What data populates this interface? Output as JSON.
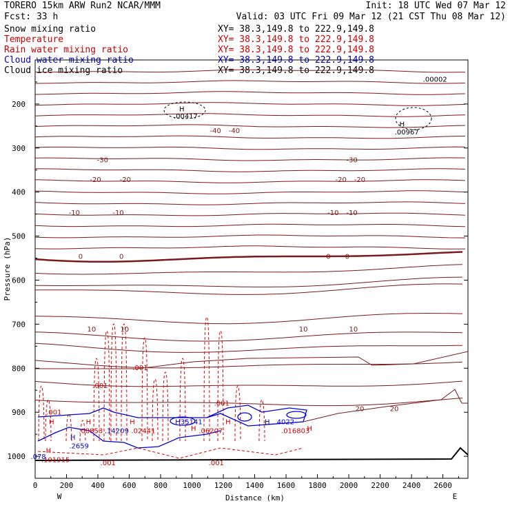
{
  "header": {
    "left_line1": "TORERO  15km ARW   Run2    NCAR/MMM",
    "left_line2": "Fcst:   33 h",
    "init": "Init: 18 UTC Wed 07 Mar 12",
    "valid": "Valid: 03 UTC Fri 09 Mar 12 (21 CST Thu 08 Mar 12)"
  },
  "legend": [
    {
      "name": "Snow mixing ratio",
      "xy": "XY=  38.3,149.8 to 222.9,149.8",
      "color": "#000000"
    },
    {
      "name": "Temperature",
      "xy": "XY=  38.3,149.8 to 222.9,149.8",
      "color": "#cc0000"
    },
    {
      "name": "Rain water mixing ratio",
      "xy": "XY=  38.3,149.8 to 222.9,149.8",
      "color": "#cc0000"
    },
    {
      "name": "Cloud water mixing ratio",
      "xy": "XY=  38.3,149.8 to 222.9,149.8",
      "color": "#0000cc"
    },
    {
      "name": "Cloud ice mixing ratio",
      "xy": "XY=  38.3,149.8 to 222.9,149.8",
      "color": "#000000"
    }
  ],
  "colors": {
    "temperature": "#7a1a1a",
    "rain": "#dd0000",
    "cloud_water": "#0000dd",
    "cloud_ice": "#000000",
    "terrain": "#000000"
  },
  "chart_data": {
    "type": "contour",
    "xlabel": "Distance (km)",
    "ylabel": "Pressure (hPa)",
    "xlim": [
      0,
      2760
    ],
    "ylim": [
      1050,
      100
    ],
    "x_ticks": [
      0,
      200,
      400,
      600,
      800,
      1000,
      1200,
      1400,
      1600,
      1800,
      2000,
      2200,
      2400,
      2600
    ],
    "y_ticks": [
      200,
      300,
      400,
      500,
      600,
      700,
      800,
      900,
      1000
    ],
    "x_end_labels": {
      "left": "W",
      "right": "E"
    },
    "temperature_contours": [
      {
        "value": -40,
        "label": "-40",
        "label_x": [
          1150,
          1270
        ],
        "label_p": 260
      },
      {
        "value": -30,
        "label": "-30",
        "label_x": [
          430,
          2020
        ],
        "label_p": 326
      },
      {
        "value": -20,
        "label": "-20",
        "label_x": [
          385,
          575,
          1950,
          2070
        ],
        "label_p": 371
      },
      {
        "value": -10,
        "label": "-10",
        "label_x": [
          250,
          530,
          1900,
          2020
        ],
        "label_p": 446
      },
      {
        "value": 0,
        "label": "0",
        "label_x": [
          290,
          550,
          1870,
          1990
        ],
        "label_p": 545
      },
      {
        "value": 10,
        "label": "10",
        "label_x": [
          360,
          570,
          1710,
          2030
        ],
        "label_p": 710
      },
      {
        "value": 20,
        "label": "20",
        "label_x": [
          2070,
          2290
        ],
        "label_p": 891
      }
    ],
    "extrema_labels": [
      {
        "text": "H",
        "x": 935,
        "p": 210,
        "color": "#000000"
      },
      {
        "text": ".00417",
        "x": 960,
        "p": 227,
        "color": "#000000"
      },
      {
        "text": "H",
        "x": 2340,
        "p": 245,
        "color": "#000000"
      },
      {
        "text": ".00967",
        "x": 2370,
        "p": 263,
        "color": "#000000"
      },
      {
        "text": ".00002",
        "x": 2550,
        "p": 143,
        "color": "#000000"
      },
      {
        "text": ".001",
        "x": 670,
        "p": 798,
        "color": "#cc0000"
      },
      {
        "text": ".001",
        "x": 415,
        "p": 839,
        "color": "#cc0000"
      },
      {
        "text": ".001",
        "x": 1190,
        "p": 879,
        "color": "#cc0000"
      },
      {
        "text": ".001",
        "x": 120,
        "p": 899,
        "color": "#cc0000"
      },
      {
        "text": ".001",
        "x": 465,
        "p": 1014,
        "color": "#cc0000"
      },
      {
        "text": ".001",
        "x": 1155,
        "p": 1014,
        "color": "#cc0000"
      },
      {
        "text": "H",
        "x": 105,
        "p": 921,
        "color": "#cc0000"
      },
      {
        "text": "H",
        "x": 340,
        "p": 921,
        "color": "#cc0000"
      },
      {
        "text": "H",
        "x": 620,
        "p": 921,
        "color": "#cc0000"
      },
      {
        "text": "H",
        "x": 910,
        "p": 921,
        "color": "#0000cc"
      },
      {
        "text": "H",
        "x": 1010,
        "p": 936,
        "color": "#cc0000"
      },
      {
        "text": "H",
        "x": 1230,
        "p": 921,
        "color": "#cc0000"
      },
      {
        "text": "H",
        "x": 1480,
        "p": 921,
        "color": "#0000cc"
      },
      {
        "text": "H",
        "x": 1750,
        "p": 936,
        "color": "#cc0000"
      },
      {
        "text": "H",
        "x": 240,
        "p": 956,
        "color": "#0000cc"
      },
      {
        "text": "H",
        "x": 85,
        "p": 986,
        "color": "#cc0000"
      },
      {
        "text": ".35141",
        "x": 990,
        "p": 921,
        "color": "#0000cc"
      },
      {
        "text": ".4022",
        "x": 1590,
        "p": 921,
        "color": "#0000cc"
      },
      {
        "text": ".08853",
        "x": 355,
        "p": 941,
        "color": "#cc0000"
      },
      {
        "text": ".14209",
        "x": 520,
        "p": 941,
        "color": "#0000cc"
      },
      {
        "text": ".02441",
        "x": 690,
        "p": 941,
        "color": "#cc0000"
      },
      {
        "text": ".06207",
        "x": 1120,
        "p": 941,
        "color": "#cc0000"
      },
      {
        "text": ".016803",
        "x": 1660,
        "p": 941,
        "color": "#cc0000"
      },
      {
        "text": ".2659",
        "x": 280,
        "p": 976,
        "color": "#0000cc"
      },
      {
        "text": ".078",
        "x": 20,
        "p": 1000,
        "color": "#0000cc"
      },
      {
        "text": ".101915",
        "x": 130,
        "p": 1007,
        "color": "#cc0000"
      }
    ]
  }
}
